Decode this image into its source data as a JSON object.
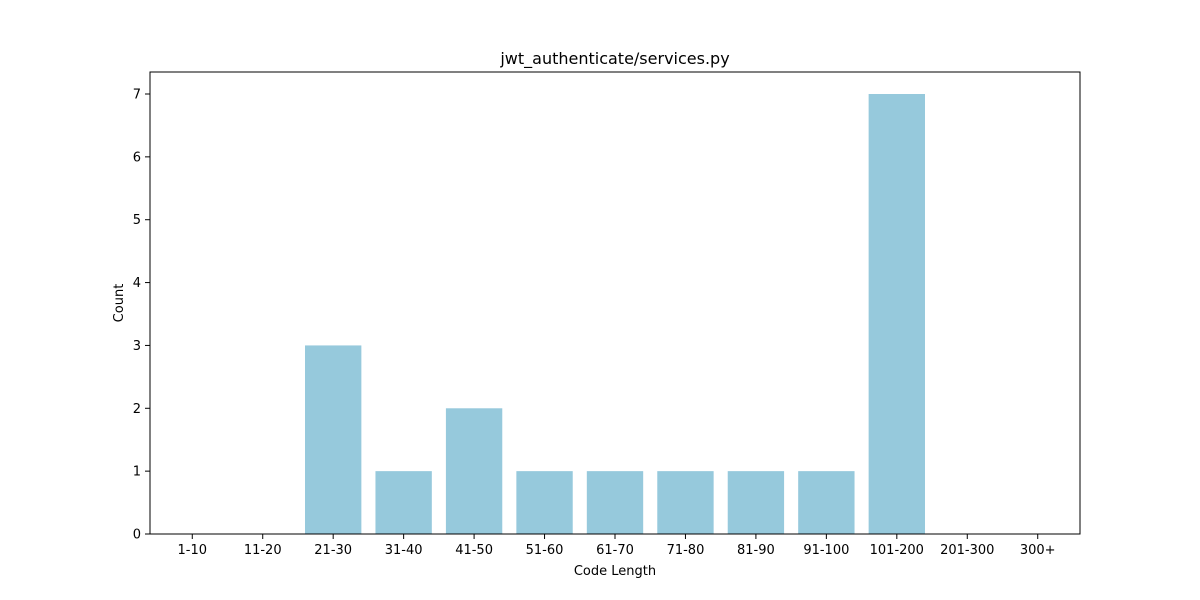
{
  "chart_data": {
    "type": "bar",
    "title": "jwt_authenticate/services.py",
    "xlabel": "Code Length",
    "ylabel": "Count",
    "categories": [
      "1-10",
      "11-20",
      "21-30",
      "31-40",
      "41-50",
      "51-60",
      "61-70",
      "71-80",
      "81-90",
      "91-100",
      "101-200",
      "201-300",
      "300+"
    ],
    "values": [
      0,
      0,
      3,
      1,
      2,
      1,
      1,
      1,
      1,
      1,
      7,
      0,
      0
    ],
    "yticks": [
      0,
      1,
      2,
      3,
      4,
      5,
      6,
      7
    ],
    "ylim": [
      0,
      7.35
    ],
    "grid": false,
    "bar_color": "#96c9dc",
    "axis_color": "#000000"
  }
}
